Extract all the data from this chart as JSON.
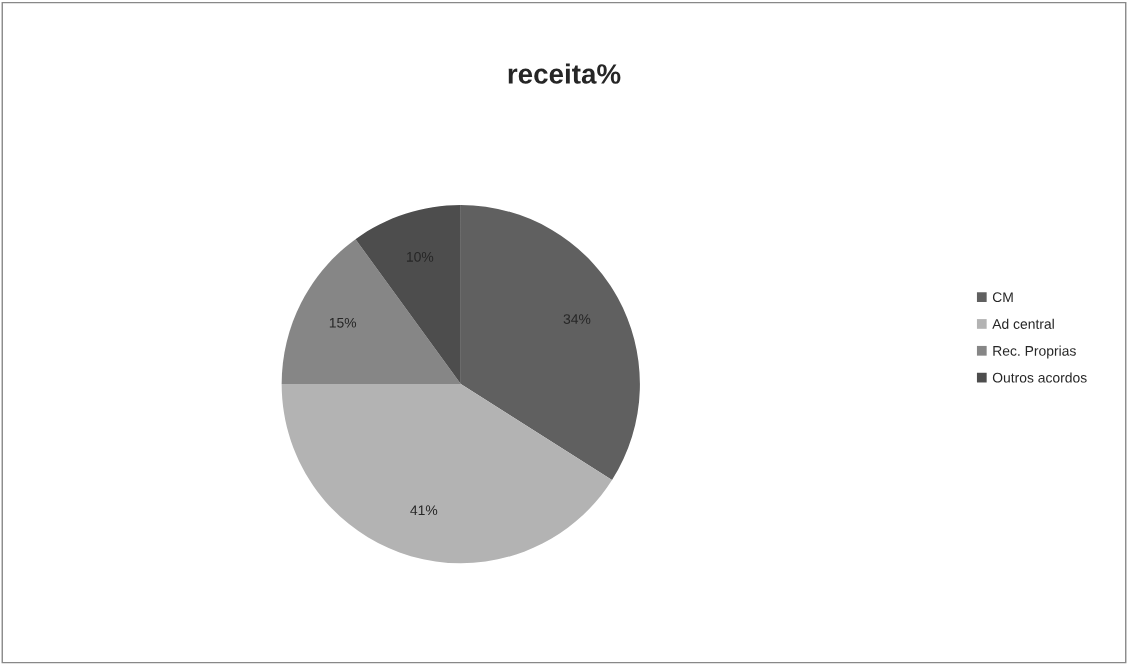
{
  "chart_data": {
    "type": "pie",
    "title": "receita%",
    "categories": [
      "CM",
      "Ad central",
      "Rec. Proprias",
      "Outros acordos"
    ],
    "values": [
      34,
      41,
      15,
      10
    ],
    "value_labels": [
      "34%",
      "41%",
      "15%",
      "10%"
    ],
    "colors": [
      "#606060",
      "#b3b3b3",
      "#868686",
      "#4d4d4d"
    ],
    "legend": "right"
  }
}
